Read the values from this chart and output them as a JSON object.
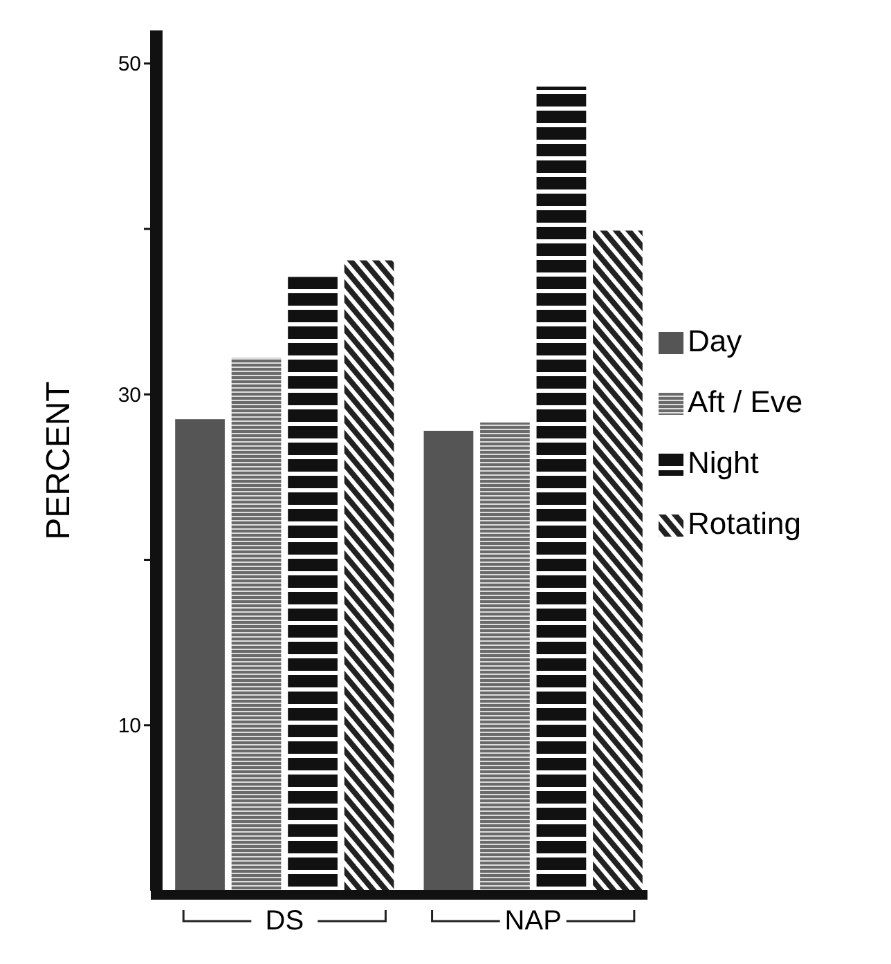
{
  "chart_data": {
    "type": "bar",
    "ylabel": "PERCENT",
    "categories": [
      "DS",
      "NAP"
    ],
    "series": [
      {
        "name": "Day",
        "color": "#555555",
        "values": [
          28.5,
          27.8
        ]
      },
      {
        "name": "Aft / Eve",
        "color": "#6a6a6a",
        "values": [
          32.2,
          28.3
        ]
      },
      {
        "name": "Night",
        "color": "#111111",
        "values": [
          37.1,
          48.6
        ]
      },
      {
        "name": "Rotating",
        "color": "#222222",
        "values": [
          38.1,
          39.9
        ]
      }
    ],
    "ylim": [
      0,
      52
    ],
    "yticks": [
      {
        "value": 10,
        "label": "10"
      },
      {
        "value": 20,
        "label": null
      },
      {
        "value": 30,
        "label": "30"
      },
      {
        "value": 40,
        "label": null
      },
      {
        "value": 50,
        "label": "50"
      }
    ],
    "grid": false,
    "legend": "right"
  }
}
